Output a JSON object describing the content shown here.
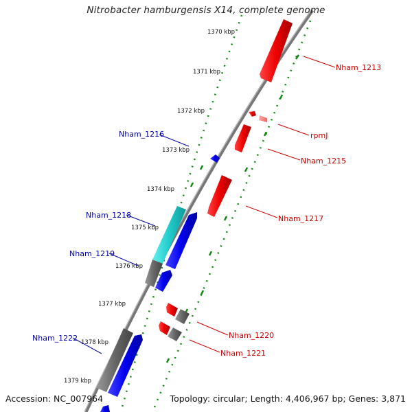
{
  "title": "Nitrobacter hamburgensis X14, complete genome",
  "footer": {
    "accession": "Accession: NC_007964",
    "summary": "Topology: circular; Length: 4,406,967 bp; Genes: 3,871"
  },
  "colors": {
    "forward_strand": "#ee0000",
    "reverse_strand": "#0000ee",
    "other_cds": "#666666",
    "rna_gene": "#22cccc",
    "backbone": "#777777",
    "gc_ticks": "#118811",
    "label_forward": "#cc0000",
    "label_reverse": "#0000aa"
  },
  "kbp_ticks": [
    "1370 kbp",
    "1371 kbp",
    "1372 kbp",
    "1373 kbp",
    "1374 kbp",
    "1375 kbp",
    "1376 kbp",
    "1377 kbp",
    "1378 kbp",
    "1379 kbp"
  ],
  "gene_labels": [
    {
      "id": "Nham_1213",
      "strand": "forward"
    },
    {
      "id": "rpmJ",
      "strand": "forward"
    },
    {
      "id": "Nham_1215",
      "strand": "forward"
    },
    {
      "id": "Nham_1217",
      "strand": "forward"
    },
    {
      "id": "Nham_1220",
      "strand": "forward"
    },
    {
      "id": "Nham_1221",
      "strand": "forward"
    },
    {
      "id": "Nham_1216",
      "strand": "reverse"
    },
    {
      "id": "Nham_1218",
      "strand": "reverse"
    },
    {
      "id": "Nham_1219",
      "strand": "reverse"
    },
    {
      "id": "Nham_1222",
      "strand": "reverse"
    }
  ]
}
